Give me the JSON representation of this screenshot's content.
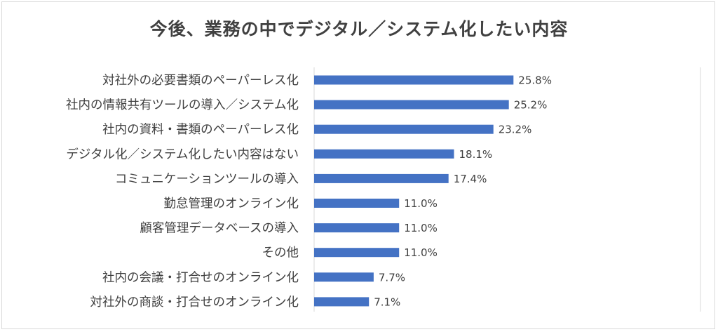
{
  "chart_data": {
    "type": "bar",
    "orientation": "horizontal",
    "title": "今後、業務の中でデジタル／システム化したい内容",
    "categories": [
      "対社外の必要書類のペーパーレス化",
      "社内の情報共有ツールの導入／システム化",
      "社内の資料・書類のペーパーレス化",
      "デジタル化／システム化したい内容はない",
      "コミュニケーションツールの導入",
      "勤怠管理のオンライン化",
      "顧客管理データベースの導入",
      "その他",
      "社内の会議・打合せのオンライン化",
      "対社外の商談・打合せのオンライン化"
    ],
    "values": [
      25.8,
      25.2,
      23.2,
      18.1,
      17.4,
      11.0,
      11.0,
      11.0,
      7.7,
      7.1
    ],
    "value_labels": [
      "25.8%",
      "25.2%",
      "23.2%",
      "18.1%",
      "17.4%",
      "11.0%",
      "11.0%",
      "11.0%",
      "7.7%",
      "7.1%"
    ],
    "xlim": [
      0,
      50
    ],
    "grid": false,
    "legend": "none",
    "bar_color": "#4472c4",
    "axis_color": "#d9d9d9",
    "text_color": "#404040"
  }
}
